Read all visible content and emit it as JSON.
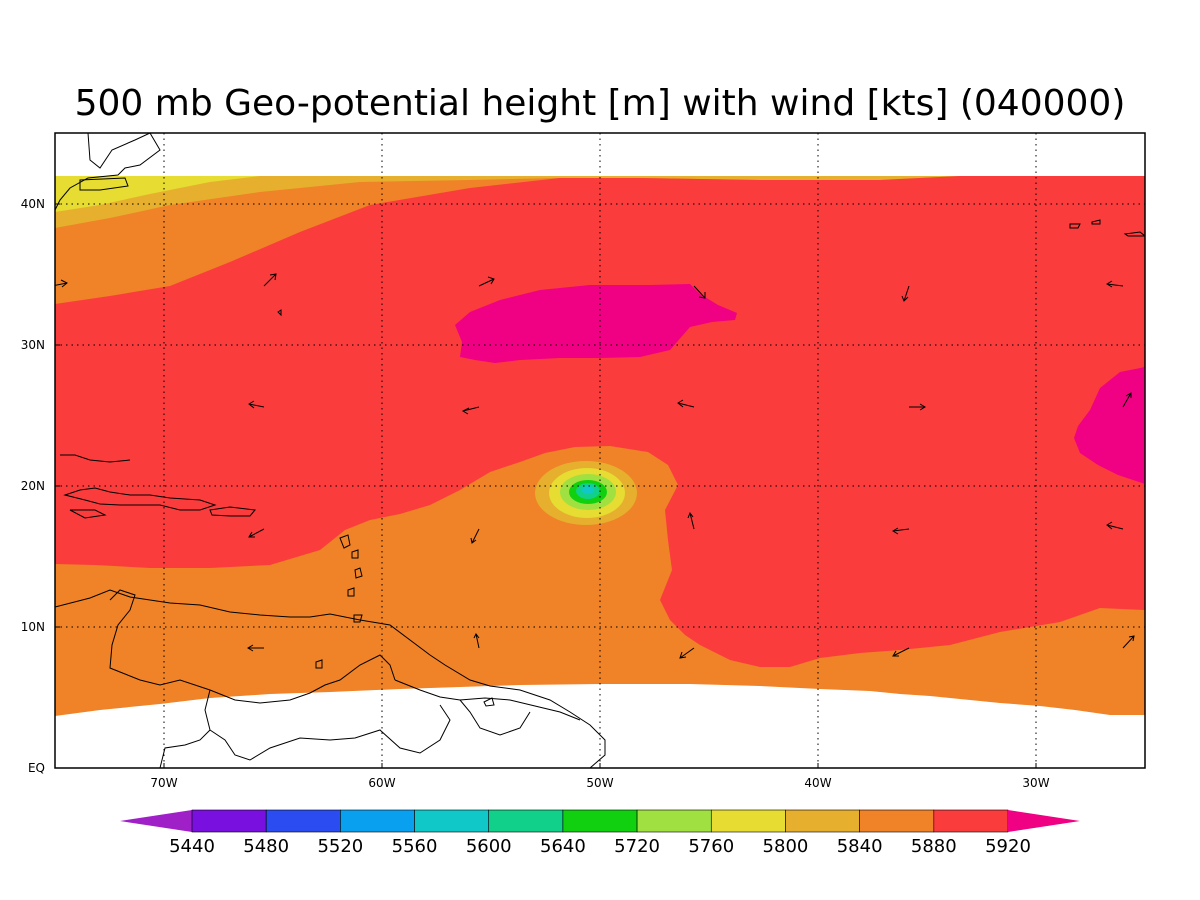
{
  "title": "500 mb Geo-potential height [m] with wind [kts] (040000)",
  "x_ticks": [
    "70W",
    "60W",
    "50W",
    "40W",
    "30W"
  ],
  "y_ticks": [
    "EQ",
    "10N",
    "20N",
    "30N",
    "40N"
  ],
  "colorbar": {
    "labels": [
      "5440",
      "5480",
      "5520",
      "5560",
      "5600",
      "5640",
      "5720",
      "5760",
      "5800",
      "5840",
      "5880",
      "5920"
    ],
    "colors": [
      "#a020c8",
      "#7a10e0",
      "#2a4cf0",
      "#0aa0f0",
      "#10c8c8",
      "#10d08a",
      "#10d010",
      "#a0e040",
      "#e6dc32",
      "#e6af2d",
      "#f08228",
      "#fa3c3c",
      "#f00082"
    ]
  },
  "colors": {
    "band_5840": "#e6af2d",
    "band_5880": "#f08228",
    "band_5920": "#fa3c3c",
    "band_above": "#f00082",
    "band_5800": "#e6dc32"
  },
  "map_extent": {
    "lon": [
      -75,
      -25
    ],
    "lat": [
      0,
      45
    ]
  }
}
